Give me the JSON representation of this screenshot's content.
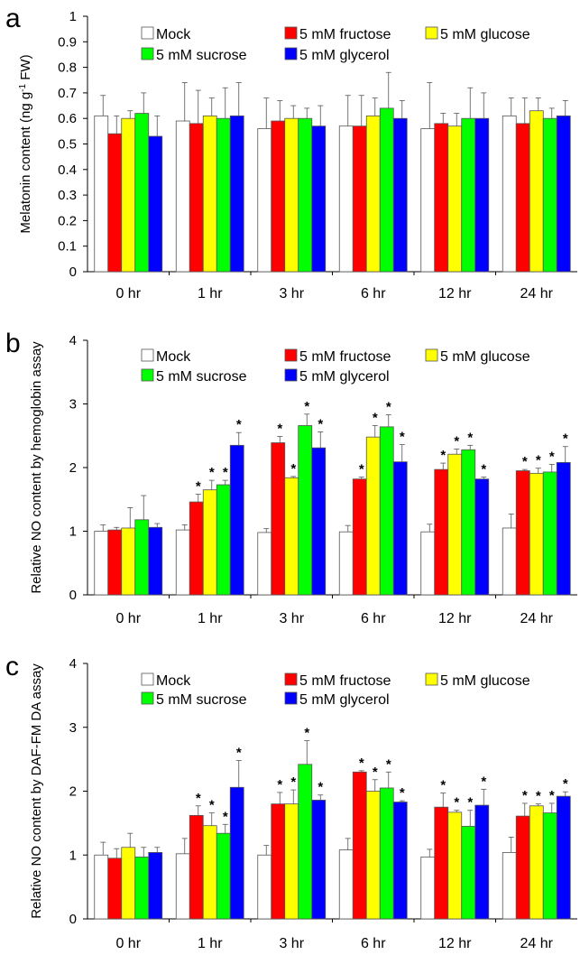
{
  "colors": {
    "Mock": "#ffffff",
    "5 mM fructose": "#ff0000",
    "5 mM glucose": "#ffff00",
    "5 mM sucrose": "#00ff00",
    "5 mM glycerol": "#0000ff"
  },
  "chart_data": [
    {
      "type": "bar",
      "panel": "a",
      "ylabel": "Melatonin content (ng g-1 FW)",
      "ylabel_main": "Melatonin content (ng g",
      "ylabel_sup": "-1",
      "ylabel_end": " FW)",
      "ylim": [
        0,
        1
      ],
      "yticks": [
        "0",
        "0.1",
        "0.2",
        "0.3",
        "0.4",
        "0.5",
        "0.6",
        "0.7",
        "0.8",
        "0.9",
        "1"
      ],
      "categories": [
        "0 hr",
        "1 hr",
        "3 hr",
        "6 hr",
        "12 hr",
        "24 hr"
      ],
      "legend_position": "top",
      "series": [
        {
          "name": "Mock",
          "values": [
            0.61,
            0.59,
            0.56,
            0.57,
            0.56,
            0.61
          ],
          "errors": [
            0.08,
            0.15,
            0.12,
            0.12,
            0.18,
            0.07
          ]
        },
        {
          "name": "5 mM fructose",
          "values": [
            0.54,
            0.58,
            0.59,
            0.57,
            0.58,
            0.58
          ],
          "errors": [
            0.07,
            0.13,
            0.08,
            0.12,
            0.04,
            0.1
          ]
        },
        {
          "name": "5 mM glucose",
          "values": [
            0.6,
            0.61,
            0.6,
            0.61,
            0.57,
            0.63
          ],
          "errors": [
            0.03,
            0.07,
            0.05,
            0.07,
            0.05,
            0.05
          ]
        },
        {
          "name": "5 mM sucrose",
          "values": [
            0.62,
            0.6,
            0.6,
            0.64,
            0.6,
            0.6
          ],
          "errors": [
            0.08,
            0.12,
            0.04,
            0.14,
            0.12,
            0.04
          ]
        },
        {
          "name": "5 mM glycerol",
          "values": [
            0.53,
            0.61,
            0.57,
            0.6,
            0.6,
            0.61
          ],
          "errors": [
            0.08,
            0.13,
            0.08,
            0.07,
            0.1,
            0.06
          ]
        }
      ]
    },
    {
      "type": "bar",
      "panel": "b",
      "ylabel": "Relative NO content by hemoglobin assay",
      "ylim": [
        0,
        4
      ],
      "yticks": [
        "0",
        "1",
        "2",
        "3",
        "4"
      ],
      "categories": [
        "0 hr",
        "1 hr",
        "3 hr",
        "6 hr",
        "12 hr",
        "24 hr"
      ],
      "legend_position": "top",
      "series": [
        {
          "name": "Mock",
          "values": [
            1.0,
            1.02,
            0.98,
            0.99,
            0.99,
            1.05
          ],
          "errors": [
            0.1,
            0.08,
            0.06,
            0.1,
            0.12,
            0.22
          ],
          "sig": [
            false,
            false,
            false,
            false,
            false,
            false
          ]
        },
        {
          "name": "5 mM fructose",
          "values": [
            1.02,
            1.46,
            2.39,
            1.82,
            1.97,
            1.95
          ],
          "errors": [
            0.04,
            0.12,
            0.1,
            0.03,
            0.1,
            0.02
          ],
          "sig": [
            false,
            true,
            true,
            true,
            true,
            true
          ]
        },
        {
          "name": "5 mM glucose",
          "values": [
            1.05,
            1.65,
            1.84,
            2.48,
            2.21,
            1.91
          ],
          "errors": [
            0.32,
            0.15,
            0.02,
            0.18,
            0.08,
            0.08
          ],
          "sig": [
            false,
            true,
            true,
            true,
            true,
            true
          ]
        },
        {
          "name": "5 mM sucrose",
          "values": [
            1.18,
            1.73,
            2.66,
            2.64,
            2.28,
            1.93
          ],
          "errors": [
            0.38,
            0.07,
            0.18,
            0.19,
            0.07,
            0.12
          ],
          "sig": [
            false,
            true,
            true,
            true,
            true,
            true
          ]
        },
        {
          "name": "5 mM glycerol",
          "values": [
            1.06,
            2.35,
            2.31,
            2.09,
            1.82,
            2.08
          ],
          "errors": [
            0.06,
            0.2,
            0.25,
            0.27,
            0.03,
            0.25
          ],
          "sig": [
            false,
            true,
            true,
            true,
            true,
            true
          ]
        }
      ]
    },
    {
      "type": "bar",
      "panel": "c",
      "ylabel": "Relative NO content by DAF-FM DA assay",
      "ylim": [
        0,
        4
      ],
      "yticks": [
        "0",
        "1",
        "2",
        "3",
        "4"
      ],
      "categories": [
        "0 hr",
        "1 hr",
        "3 hr",
        "6 hr",
        "12 hr",
        "24 hr"
      ],
      "legend_position": "top",
      "series": [
        {
          "name": "Mock",
          "values": [
            1.0,
            1.02,
            1.0,
            1.08,
            0.97,
            1.04
          ],
          "errors": [
            0.2,
            0.24,
            0.15,
            0.18,
            0.12,
            0.24
          ],
          "sig": [
            false,
            false,
            false,
            false,
            false,
            false
          ]
        },
        {
          "name": "5 mM fructose",
          "values": [
            0.95,
            1.62,
            1.8,
            2.3,
            1.75,
            1.61
          ],
          "errors": [
            0.15,
            0.15,
            0.18,
            0.02,
            0.22,
            0.2
          ],
          "sig": [
            false,
            true,
            true,
            true,
            true,
            true
          ]
        },
        {
          "name": "5 mM glucose",
          "values": [
            1.12,
            1.46,
            1.8,
            2.0,
            1.67,
            1.77
          ],
          "errors": [
            0.22,
            0.2,
            0.22,
            0.18,
            0.03,
            0.03
          ],
          "sig": [
            false,
            true,
            true,
            true,
            true,
            true
          ]
        },
        {
          "name": "5 mM sucrose",
          "values": [
            0.97,
            1.34,
            2.42,
            2.05,
            1.45,
            1.66
          ],
          "errors": [
            0.15,
            0.14,
            0.37,
            0.25,
            0.25,
            0.15
          ],
          "sig": [
            false,
            true,
            true,
            true,
            true,
            true
          ]
        },
        {
          "name": "5 mM glycerol",
          "values": [
            1.04,
            2.06,
            1.86,
            1.83,
            1.78,
            1.92
          ],
          "errors": [
            0.08,
            0.42,
            0.08,
            0.02,
            0.25,
            0.07
          ],
          "sig": [
            false,
            true,
            true,
            true,
            true,
            true
          ]
        }
      ]
    }
  ]
}
